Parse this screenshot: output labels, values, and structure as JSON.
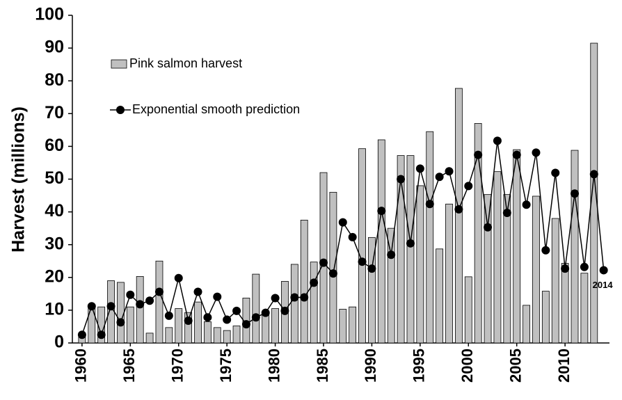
{
  "chart_data": {
    "type": "bar-line",
    "y_label": "Harvest (millions)",
    "x": [
      1960,
      1961,
      1962,
      1963,
      1964,
      1965,
      1966,
      1967,
      1968,
      1969,
      1970,
      1971,
      1972,
      1973,
      1974,
      1975,
      1976,
      1977,
      1978,
      1979,
      1980,
      1981,
      1982,
      1983,
      1984,
      1985,
      1986,
      1987,
      1988,
      1989,
      1990,
      1991,
      1992,
      1993,
      1994,
      1995,
      1996,
      1997,
      1998,
      1999,
      2000,
      2001,
      2002,
      2003,
      2004,
      2005,
      2006,
      2007,
      2008,
      2009,
      2010,
      2011,
      2012,
      2013,
      2014
    ],
    "series": [
      {
        "name": "Pink salmon harvest",
        "type": "bar",
        "color": "#c0c0c0",
        "values": [
          2,
          10.5,
          11,
          19,
          18.5,
          11,
          20.3,
          3,
          25,
          4.7,
          10.5,
          9.3,
          12.5,
          6.5,
          4.7,
          3.8,
          5.2,
          13.7,
          21,
          9,
          10.5,
          18.8,
          24,
          37.5,
          24.7,
          52,
          46,
          10.3,
          11,
          59.3,
          32.2,
          62,
          35,
          57.2,
          57.2,
          48,
          64.5,
          28.7,
          42.4,
          77.7,
          20.2,
          67,
          45.3,
          52.3,
          45.3,
          59,
          11.5,
          44.8,
          15.8,
          38,
          24.3,
          58.8,
          21.3,
          91.5,
          null
        ]
      },
      {
        "name": "Exponential smooth prediction",
        "type": "line",
        "color": "#000000",
        "values": [
          2.5,
          11.2,
          2.5,
          11.2,
          6.3,
          14.7,
          11.8,
          12.9,
          15.6,
          8.3,
          19.8,
          6.8,
          15.6,
          7.8,
          14.1,
          7.1,
          9.8,
          5.7,
          7.8,
          9.2,
          13.7,
          9.8,
          13.9,
          13.9,
          18.4,
          24.5,
          21.2,
          36.8,
          32.3,
          24.8,
          22.7,
          40.3,
          26.9,
          50,
          30.4,
          53.2,
          42.4,
          50.7,
          52.4,
          40.8,
          47.9,
          57.4,
          35.3,
          61.7,
          39.7,
          57.4,
          42.2,
          58.1,
          28.3,
          51.9,
          22.7,
          45.6,
          23.2,
          51.5,
          22.2
        ]
      }
    ],
    "annotations": [
      "2014"
    ],
    "xlim": [
      1959,
      2014.6
    ],
    "xticks": [
      1960,
      1965,
      1970,
      1975,
      1980,
      1985,
      1990,
      1995,
      2000,
      2005,
      2010
    ],
    "ylim": [
      0,
      100
    ],
    "yticks": [
      0,
      10,
      20,
      30,
      40,
      50,
      60,
      70,
      80,
      90,
      100
    ],
    "grid": false
  }
}
